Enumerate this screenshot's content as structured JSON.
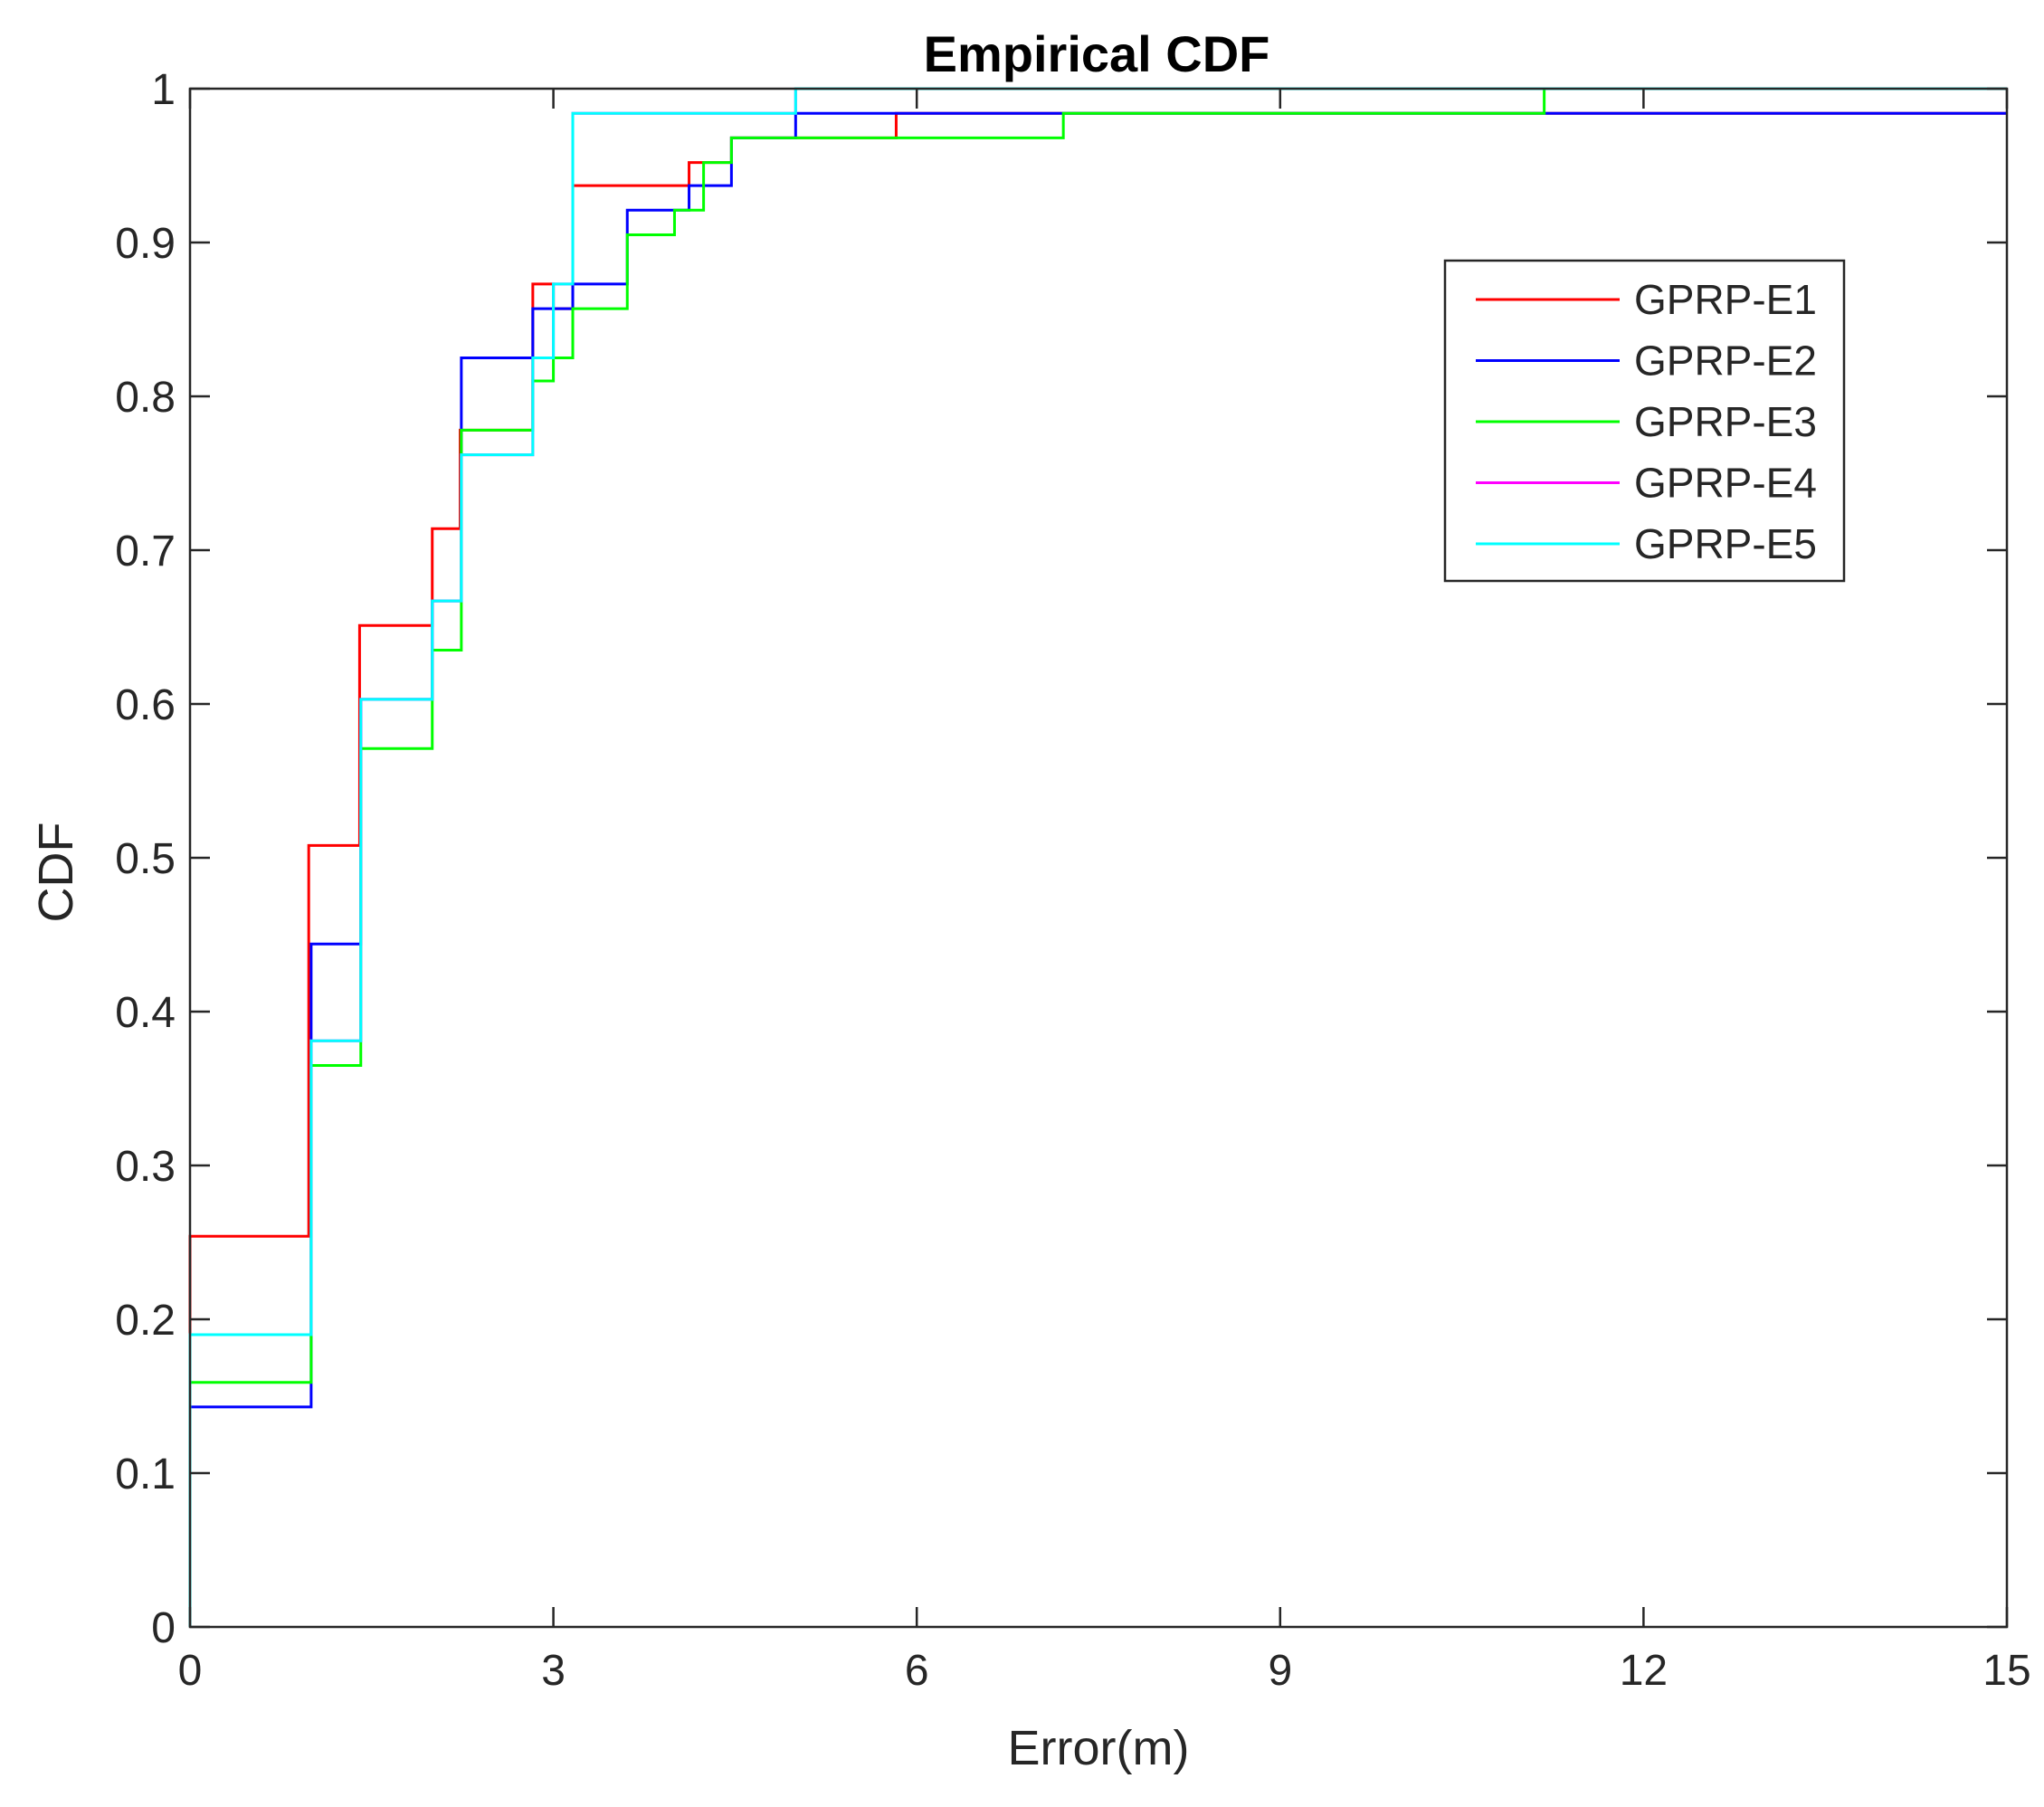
{
  "chart_data": {
    "type": "line",
    "subtype": "empirical-cdf-stairs",
    "title": "Empirical CDF",
    "xlabel": "Error(m)",
    "ylabel": "CDF",
    "xlim": [
      0,
      15
    ],
    "ylim": [
      0,
      1
    ],
    "xticks": [
      0,
      3,
      6,
      9,
      12,
      15
    ],
    "xtick_labels": [
      "0",
      "3",
      "6",
      "9",
      "12",
      "15"
    ],
    "yticks": [
      0,
      0.1,
      0.2,
      0.3,
      0.4,
      0.5,
      0.6,
      0.7,
      0.8,
      0.9,
      1
    ],
    "ytick_labels": [
      "0",
      "0.1",
      "0.2",
      "0.3",
      "0.4",
      "0.5",
      "0.6",
      "0.7",
      "0.8",
      "0.9",
      "1"
    ],
    "grid": false,
    "legend_position": "top-right",
    "series": [
      {
        "name": "GPRP-E1",
        "color": "#ff0000",
        "points": [
          [
            0,
            0
          ],
          [
            0,
            0.254
          ],
          [
            0.98,
            0.254
          ],
          [
            0.98,
            0.508
          ],
          [
            1.4,
            0.508
          ],
          [
            1.4,
            0.651
          ],
          [
            2.0,
            0.651
          ],
          [
            2.0,
            0.714
          ],
          [
            2.23,
            0.714
          ],
          [
            2.23,
            0.778
          ],
          [
            2.83,
            0.778
          ],
          [
            2.83,
            0.873
          ],
          [
            3.0,
            0.873
          ],
          [
            3.0,
            0.857
          ],
          [
            3.16,
            0.857
          ],
          [
            3.16,
            0.937
          ],
          [
            4.12,
            0.937
          ],
          [
            4.12,
            0.952
          ],
          [
            4.47,
            0.952
          ],
          [
            4.47,
            0.968
          ],
          [
            5.83,
            0.968
          ],
          [
            5.83,
            0.984
          ],
          [
            15,
            0.984
          ]
        ]
      },
      {
        "name": "GPRP-E2",
        "color": "#0000ff",
        "points": [
          [
            0,
            0
          ],
          [
            0,
            0.143
          ],
          [
            1.0,
            0.143
          ],
          [
            1.0,
            0.444
          ],
          [
            1.41,
            0.444
          ],
          [
            1.41,
            0.603
          ],
          [
            2.0,
            0.603
          ],
          [
            2.0,
            0.667
          ],
          [
            2.24,
            0.667
          ],
          [
            2.24,
            0.825
          ],
          [
            2.83,
            0.825
          ],
          [
            2.83,
            0.857
          ],
          [
            3.16,
            0.857
          ],
          [
            3.16,
            0.873
          ],
          [
            3.61,
            0.873
          ],
          [
            3.61,
            0.921
          ],
          [
            4.12,
            0.921
          ],
          [
            4.12,
            0.937
          ],
          [
            4.47,
            0.937
          ],
          [
            4.47,
            0.968
          ],
          [
            5.0,
            0.968
          ],
          [
            5.0,
            0.984
          ],
          [
            15,
            0.984
          ]
        ]
      },
      {
        "name": "GPRP-E3",
        "color": "#00ff00",
        "points": [
          [
            0,
            0
          ],
          [
            0,
            0.159
          ],
          [
            1.0,
            0.159
          ],
          [
            1.0,
            0.365
          ],
          [
            1.41,
            0.365
          ],
          [
            1.41,
            0.571
          ],
          [
            2.0,
            0.571
          ],
          [
            2.0,
            0.635
          ],
          [
            2.24,
            0.635
          ],
          [
            2.24,
            0.778
          ],
          [
            2.83,
            0.778
          ],
          [
            2.83,
            0.81
          ],
          [
            3.0,
            0.81
          ],
          [
            3.0,
            0.825
          ],
          [
            3.16,
            0.825
          ],
          [
            3.16,
            0.857
          ],
          [
            3.61,
            0.857
          ],
          [
            3.61,
            0.905
          ],
          [
            4.0,
            0.905
          ],
          [
            4.0,
            0.921
          ],
          [
            4.24,
            0.921
          ],
          [
            4.24,
            0.952
          ],
          [
            4.47,
            0.952
          ],
          [
            4.47,
            0.968
          ],
          [
            7.21,
            0.968
          ],
          [
            7.21,
            0.984
          ],
          [
            11.18,
            0.984
          ],
          [
            11.18,
            1.0
          ],
          [
            15,
            1.0
          ]
        ]
      },
      {
        "name": "GPRP-E4",
        "color": "#ff00ff",
        "points": [
          [
            0,
            0
          ],
          [
            0,
            0.19
          ],
          [
            1.0,
            0.19
          ],
          [
            1.0,
            0.381
          ],
          [
            1.41,
            0.381
          ],
          [
            1.41,
            0.603
          ],
          [
            2.0,
            0.603
          ],
          [
            2.0,
            0.667
          ],
          [
            2.24,
            0.667
          ],
          [
            2.24,
            0.762
          ],
          [
            2.83,
            0.762
          ],
          [
            2.83,
            0.825
          ],
          [
            3.0,
            0.825
          ],
          [
            3.0,
            0.873
          ],
          [
            3.16,
            0.873
          ],
          [
            3.16,
            0.984
          ],
          [
            5.0,
            0.984
          ],
          [
            5.0,
            1.0
          ],
          [
            15,
            1.0
          ]
        ]
      },
      {
        "name": "GPRP-E5",
        "color": "#00ffff",
        "points": [
          [
            0,
            0
          ],
          [
            0,
            0.19
          ],
          [
            1.0,
            0.19
          ],
          [
            1.0,
            0.381
          ],
          [
            1.41,
            0.381
          ],
          [
            1.41,
            0.603
          ],
          [
            2.0,
            0.603
          ],
          [
            2.0,
            0.667
          ],
          [
            2.24,
            0.667
          ],
          [
            2.24,
            0.762
          ],
          [
            2.83,
            0.762
          ],
          [
            2.83,
            0.825
          ],
          [
            3.0,
            0.825
          ],
          [
            3.0,
            0.873
          ],
          [
            3.16,
            0.873
          ],
          [
            3.16,
            0.984
          ],
          [
            5.0,
            0.984
          ],
          [
            5.0,
            1.0
          ],
          [
            15,
            1.0
          ]
        ]
      }
    ]
  }
}
